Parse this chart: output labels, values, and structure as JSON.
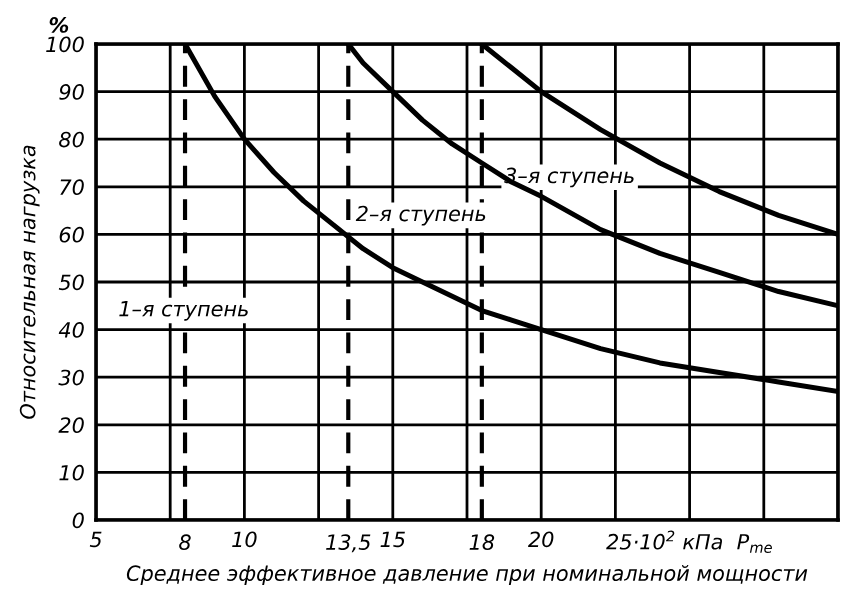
{
  "chart_data": {
    "type": "line",
    "xlabel": "Среднее эффективное давление при номинальной мощности",
    "ylabel": "Относительная нагрузка",
    "xlim": [
      5,
      30
    ],
    "ylim": [
      0,
      100
    ],
    "xticks": [
      5,
      {
        "value": 7.5,
        "label": null
      },
      10,
      {
        "value": 12.5,
        "label": null
      },
      15,
      {
        "value": 17.5,
        "label": null
      },
      20,
      {
        "value": 22.5,
        "label": null
      },
      {
        "value": 25,
        "label": "25·10$^{2}$ кПа  P$_{me}$"
      },
      {
        "value": 27.5,
        "label": null
      },
      {
        "value": 30,
        "label": null
      }
    ],
    "yticks": [
      0,
      10,
      20,
      30,
      40,
      50,
      60,
      70,
      80,
      90,
      100
    ],
    "grid": true,
    "marker": "none",
    "line_style": "solid",
    "series": [
      {
        "color": "#000000",
        "x": [
          8,
          9,
          10,
          11,
          12,
          13,
          14,
          15,
          16,
          17,
          18,
          19,
          20,
          22,
          24,
          26,
          28,
          30
        ],
        "values": [
          100,
          89,
          80,
          73,
          67,
          62,
          57,
          53,
          50,
          47,
          44,
          42,
          40,
          36,
          33,
          31,
          29,
          27
        ]
      },
      {
        "color": "#000000",
        "x": [
          13.5,
          14,
          15,
          16,
          17,
          18,
          19,
          20,
          22,
          24,
          26,
          28,
          30
        ],
        "values": [
          100,
          96,
          90,
          84,
          79,
          75,
          71,
          68,
          61,
          56,
          52,
          48,
          45
        ]
      },
      {
        "color": "#000000",
        "x": [
          18,
          19,
          20,
          22,
          24,
          26,
          28,
          30
        ],
        "values": [
          100,
          95,
          90,
          82,
          75,
          69,
          64,
          60
        ]
      }
    ],
    "ref_lines": [
      {
        "axis": "x",
        "value": 8,
        "label": "8",
        "color": "#000000",
        "line_style": "dashed"
      },
      {
        "axis": "x",
        "value": 13.5,
        "label": "13,5",
        "color": "#000000",
        "line_style": "dashed"
      },
      {
        "axis": "x",
        "value": 18,
        "label": "18",
        "color": "#000000",
        "line_style": "dashed"
      }
    ],
    "annotations": [
      "1–я ступень",
      "2–я ступень",
      "3–я ступень",
      "%"
    ]
  }
}
